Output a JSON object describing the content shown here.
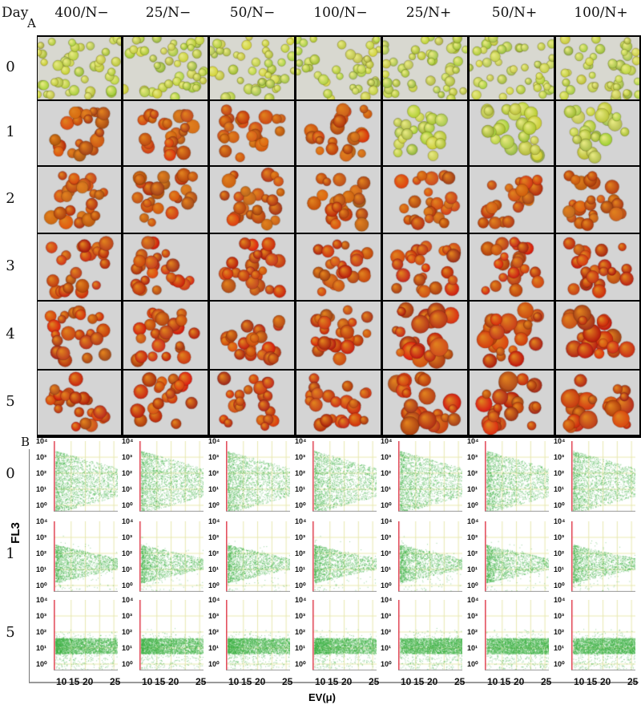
{
  "header": {
    "day_label": "Day",
    "columns": [
      "400/N−",
      "25/N−",
      "50/N−",
      "100/N−",
      "25/N+",
      "50/N+",
      "100/N+"
    ]
  },
  "panel_a": {
    "label": "A",
    "rows": [
      "0",
      "1",
      "2",
      "3",
      "4",
      "5"
    ]
  },
  "panel_b": {
    "label": "B",
    "rows": [
      "0",
      "1",
      "5"
    ],
    "y_axis_label": "FL3",
    "x_axis_label": "EV(μ)",
    "y_ticks": [
      "10⁴",
      "10³",
      "10²",
      "10¹",
      "10⁰"
    ],
    "x_ticks": [
      "10",
      "15",
      "20",
      "25"
    ]
  },
  "colors": {
    "green_cells": "#b8c040",
    "red_cells": "#c0301a",
    "scatter": "#3cb043",
    "grid": "#e8e8b0",
    "axis_red": "#e04050"
  }
}
